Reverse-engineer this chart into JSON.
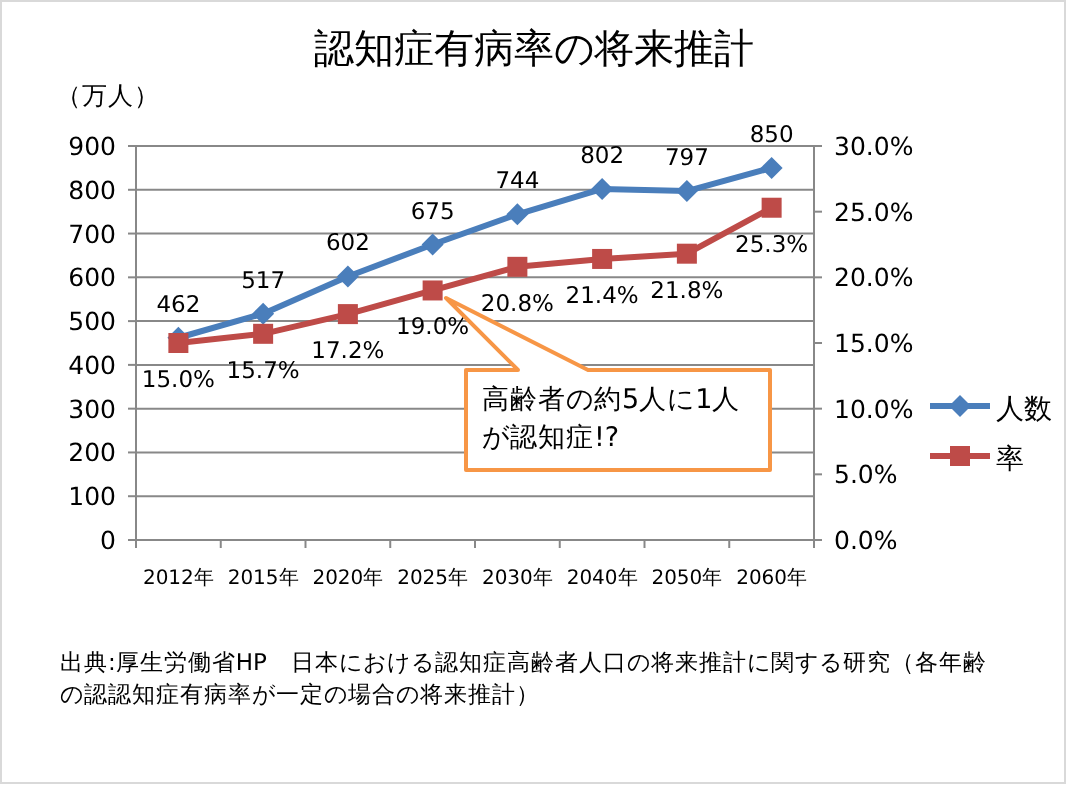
{
  "chart_data": {
    "type": "line",
    "title": "認知症有病率の将来推計",
    "ylabel": "（万人）",
    "categories": [
      "2012年",
      "2015年",
      "2020年",
      "2025年",
      "2030年",
      "2040年",
      "2050年",
      "2060年"
    ],
    "series": [
      {
        "name": "人数",
        "color": "#4a7ebb",
        "marker": "diamond",
        "values": [
          462,
          517,
          602,
          675,
          744,
          802,
          797,
          850
        ],
        "value_labels": [
          "462",
          "517",
          "602",
          "675",
          "744",
          "802",
          "797",
          "850"
        ]
      },
      {
        "name": "率",
        "color": "#be4b48",
        "marker": "square",
        "axis": "y2",
        "values": [
          15.0,
          15.7,
          17.2,
          19.0,
          20.8,
          21.4,
          21.8,
          25.3
        ],
        "value_labels": [
          "15.0%",
          "15.7%",
          "17.2%",
          "19.0%",
          "20.8%",
          "21.4%",
          "21.8%",
          "25.3%"
        ]
      }
    ],
    "ylim": [
      0,
      900
    ],
    "yticks": [
      0,
      100,
      200,
      300,
      400,
      500,
      600,
      700,
      800,
      900
    ],
    "y2lim": [
      0,
      30
    ],
    "y2ticks": [
      {
        "value": 0,
        "label": "0.0%"
      },
      {
        "value": 5,
        "label": "5.0%"
      },
      {
        "value": 10,
        "label": "10.0%"
      },
      {
        "value": 15,
        "label": "15.0%"
      },
      {
        "value": 20,
        "label": "20.0%"
      },
      {
        "value": 25,
        "label": "25.0%"
      },
      {
        "value": 30,
        "label": "30.0%"
      }
    ],
    "grid": "y",
    "legend": "right",
    "line_style": "solid",
    "annotations": [
      "高齢者の約5人に1人が認知症!?",
      "出典:厚生労働省HP　日本における認知症高齢者人口の将来推計に関する研究（各年齢の認認知症有病率が一定の場合の将来推計）"
    ]
  }
}
